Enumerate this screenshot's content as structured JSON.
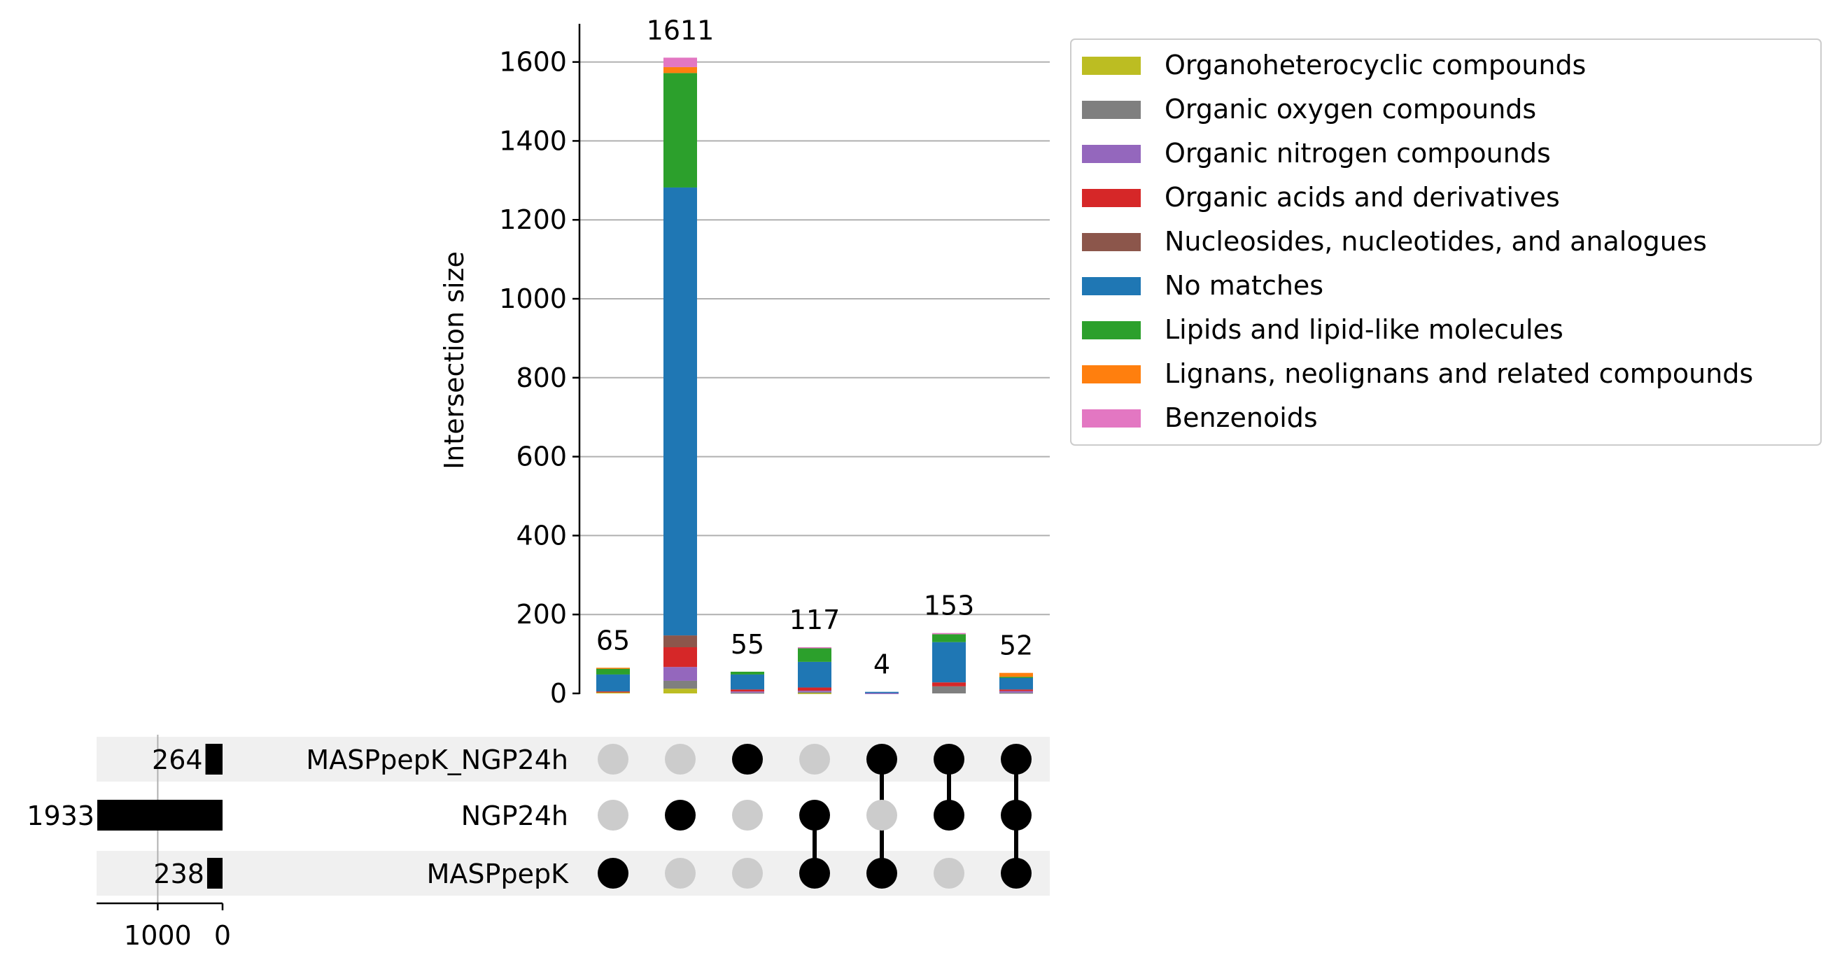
{
  "chart_data": {
    "type": "bar",
    "subtype": "upset-stacked",
    "ylabel": "Intersection size",
    "ylim": [
      0,
      1700
    ],
    "yticks": [
      0,
      200,
      400,
      600,
      800,
      1000,
      1200,
      1400,
      1600
    ],
    "grid": true,
    "legend_position": "top-right outside",
    "categories_legend": [
      {
        "name": "Organoheterocyclic compounds",
        "color": "#bcbd22"
      },
      {
        "name": "Organic oxygen compounds",
        "color": "#7f7f7f"
      },
      {
        "name": "Organic nitrogen compounds",
        "color": "#9467bd"
      },
      {
        "name": "Organic acids and derivatives",
        "color": "#d62728"
      },
      {
        "name": "Nucleosides, nucleotides, and analogues",
        "color": "#8c564b"
      },
      {
        "name": "No matches",
        "color": "#1f77b4"
      },
      {
        "name": "Lipids and lipid-like molecules",
        "color": "#2ca02c"
      },
      {
        "name": "Lignans, neolignans and related compounds",
        "color": "#ff7f0e"
      },
      {
        "name": "Benzenoids",
        "color": "#e377c2"
      }
    ],
    "sets": [
      {
        "name": "MASPpepK_NGP24h",
        "size": 264
      },
      {
        "name": "NGP24h",
        "size": 1933
      },
      {
        "name": "MASPpepK",
        "size": 238
      }
    ],
    "set_size_axis": {
      "ticks": [
        1000,
        0
      ],
      "tick_labels": [
        "1000",
        "0"
      ]
    },
    "intersections": [
      {
        "total": 65,
        "total_label": "65",
        "members": [
          false,
          false,
          true
        ],
        "segments": [
          3,
          0,
          0,
          2,
          0,
          43,
          15,
          2,
          0
        ]
      },
      {
        "total": 1611,
        "total_label": "1611",
        "members": [
          false,
          true,
          false
        ],
        "segments": [
          12,
          20,
          35,
          50,
          30,
          1135,
          290,
          15,
          24
        ]
      },
      {
        "total": 55,
        "total_label": "55",
        "members": [
          true,
          false,
          false
        ],
        "segments": [
          0,
          2,
          3,
          5,
          0,
          38,
          7,
          0,
          0
        ]
      },
      {
        "total": 117,
        "total_label": "117",
        "members": [
          false,
          true,
          true
        ],
        "segments": [
          1,
          3,
          3,
          8,
          0,
          65,
          35,
          0,
          2
        ]
      },
      {
        "total": 4,
        "total_label": "4",
        "members": [
          true,
          false,
          true
        ],
        "segments": [
          0,
          0,
          1,
          0,
          0,
          3,
          0,
          0,
          0
        ]
      },
      {
        "total": 153,
        "total_label": "153",
        "members": [
          true,
          true,
          false
        ],
        "segments": [
          0,
          18,
          0,
          10,
          0,
          102,
          20,
          0,
          3
        ]
      },
      {
        "total": 52,
        "total_label": "52",
        "members": [
          true,
          true,
          true
        ],
        "segments": [
          0,
          2,
          4,
          4,
          0,
          30,
          2,
          10,
          0
        ]
      }
    ]
  }
}
